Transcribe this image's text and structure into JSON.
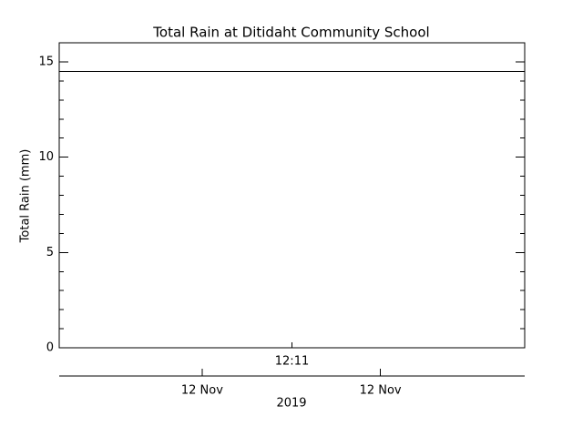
{
  "chart_data": {
    "type": "line",
    "title": "Total Rain at Ditidaht Community School",
    "ylabel": "Total Rain (mm)",
    "series": [
      {
        "name": "Total Rain",
        "color": "#000000",
        "values": [
          14.5,
          14.5
        ]
      }
    ],
    "xticks": [
      "12:11"
    ],
    "date_ticks": [
      "12 Nov",
      "12 Nov"
    ],
    "xlabel": "2019",
    "ylim": [
      0,
      16
    ],
    "yticks": [
      0,
      5,
      10,
      15
    ]
  }
}
